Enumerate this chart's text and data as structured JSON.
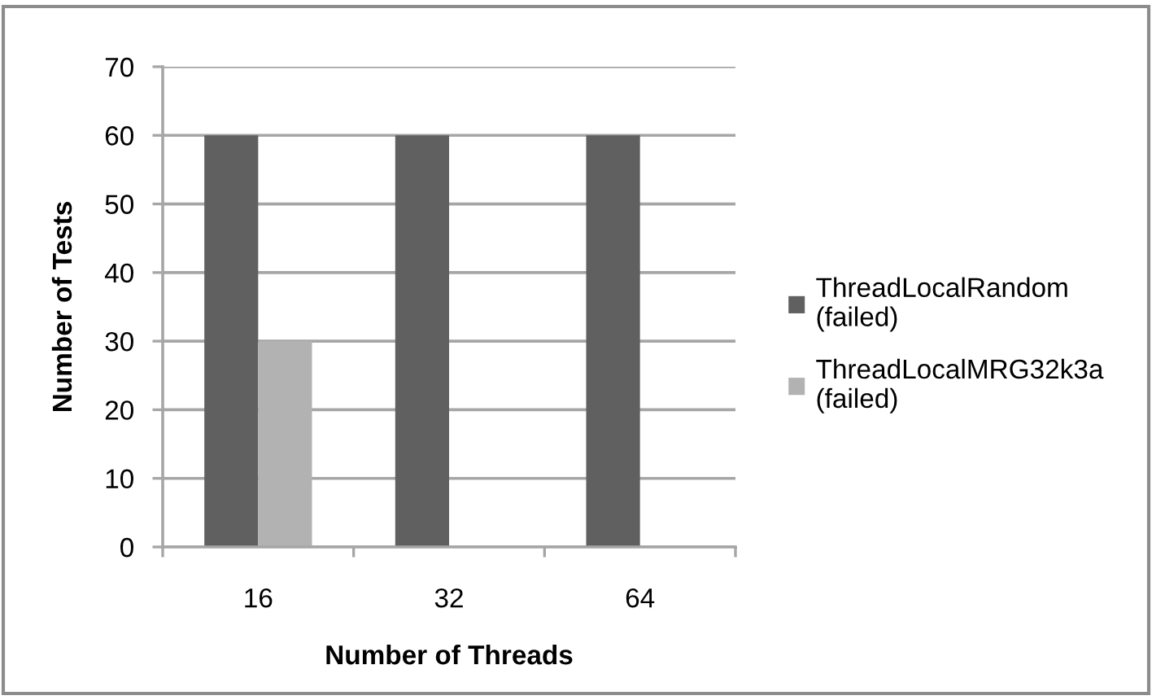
{
  "chart_data": {
    "type": "bar",
    "xlabel": "Number of Threads",
    "ylabel": "Number of Tests",
    "categories": [
      "16",
      "32",
      "64"
    ],
    "series": [
      {
        "name": "ThreadLocalRandom (failed)",
        "color": "#606060",
        "values": [
          60,
          60,
          60
        ]
      },
      {
        "name": "ThreadLocalMRG32k3a (failed)",
        "color": "#b2b2b2",
        "values": [
          30,
          null,
          null
        ]
      }
    ],
    "ylim": [
      0,
      70
    ],
    "yticks": [
      0,
      10,
      20,
      30,
      40,
      50,
      60,
      70
    ],
    "grid": "y",
    "legend": "right"
  }
}
